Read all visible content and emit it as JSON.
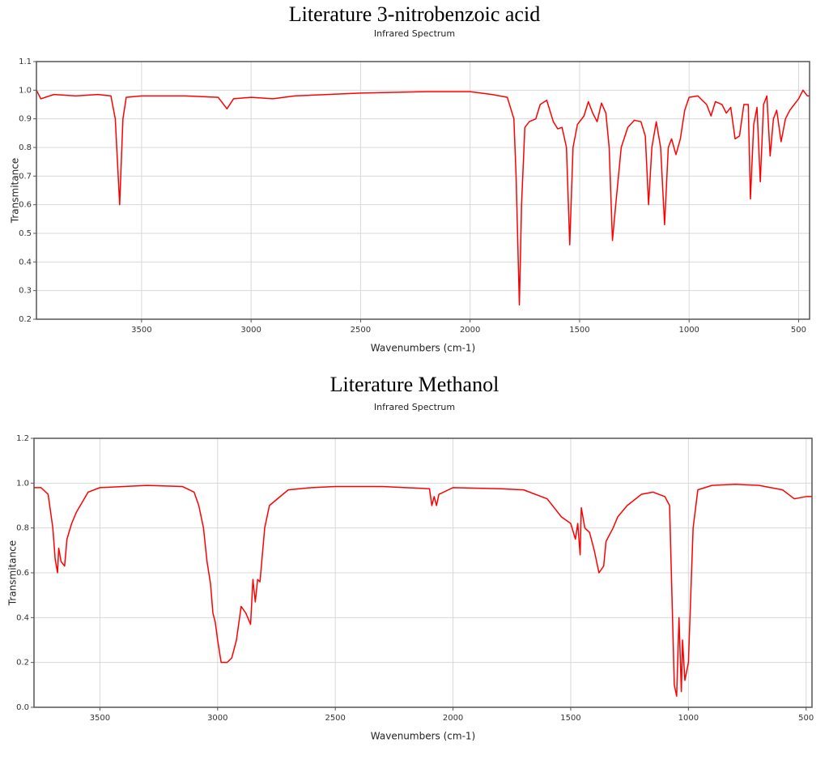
{
  "chart_data": [
    {
      "type": "line",
      "title": "Literature 3-nitrobenzoic acid",
      "subtitle": "Infrared Spectrum",
      "xlabel": "Wavenumbers (cm-1)",
      "ylabel": "Transmitance",
      "color": "#ff0000",
      "grid": true,
      "xlim": [
        3980,
        450
      ],
      "xticks": [
        3500,
        3000,
        2500,
        2000,
        1500,
        1000,
        500
      ],
      "ylim": [
        0.2,
        1.1
      ],
      "yticks": [
        0.2,
        0.3,
        0.4,
        0.5,
        0.6,
        0.7,
        0.8,
        0.9,
        {
          "value": 1,
          "label": "1.0"
        },
        1.1
      ],
      "x": [
        3980,
        3960,
        3900,
        3800,
        3700,
        3640,
        3620,
        3600,
        3585,
        3570,
        3500,
        3300,
        3150,
        3110,
        3080,
        3000,
        2900,
        2800,
        2500,
        2200,
        2000,
        1900,
        1830,
        1800,
        1790,
        1775,
        1765,
        1750,
        1730,
        1700,
        1680,
        1650,
        1620,
        1600,
        1580,
        1560,
        1545,
        1530,
        1510,
        1480,
        1460,
        1440,
        1420,
        1400,
        1380,
        1365,
        1350,
        1335,
        1310,
        1280,
        1250,
        1220,
        1200,
        1185,
        1170,
        1150,
        1130,
        1112,
        1095,
        1080,
        1060,
        1040,
        1020,
        1000,
        960,
        920,
        900,
        880,
        850,
        830,
        810,
        790,
        770,
        750,
        730,
        720,
        705,
        690,
        675,
        660,
        645,
        630,
        615,
        600,
        580,
        560,
        540,
        520,
        500,
        480,
        460,
        450
      ],
      "values": [
        1.0,
        0.97,
        0.985,
        0.98,
        0.985,
        0.98,
        0.9,
        0.6,
        0.9,
        0.975,
        0.98,
        0.98,
        0.975,
        0.935,
        0.97,
        0.975,
        0.97,
        0.98,
        0.99,
        0.995,
        0.995,
        0.985,
        0.975,
        0.9,
        0.7,
        0.25,
        0.6,
        0.87,
        0.89,
        0.9,
        0.95,
        0.965,
        0.89,
        0.865,
        0.87,
        0.8,
        0.46,
        0.8,
        0.88,
        0.91,
        0.96,
        0.92,
        0.89,
        0.955,
        0.92,
        0.8,
        0.475,
        0.6,
        0.8,
        0.87,
        0.895,
        0.89,
        0.84,
        0.6,
        0.8,
        0.89,
        0.8,
        0.53,
        0.8,
        0.83,
        0.775,
        0.83,
        0.93,
        0.975,
        0.98,
        0.95,
        0.91,
        0.96,
        0.95,
        0.92,
        0.94,
        0.83,
        0.84,
        0.95,
        0.95,
        0.62,
        0.88,
        0.94,
        0.68,
        0.95,
        0.98,
        0.77,
        0.9,
        0.93,
        0.82,
        0.9,
        0.93,
        0.95,
        0.97,
        1.0,
        0.98,
        0.98
      ]
    },
    {
      "type": "line",
      "title": "Literature Methanol",
      "subtitle": "Infrared Spectrum",
      "xlabel": "Wavenumbers (cm-1)",
      "ylabel": "Transmitance",
      "color": "#ff0000",
      "grid": true,
      "xlim": [
        3780,
        475
      ],
      "xticks": [
        3500,
        3000,
        2500,
        2000,
        1500,
        1000,
        500
      ],
      "ylim": [
        0,
        1.2
      ],
      "yticks": [
        {
          "value": 0,
          "label": "0.0"
        },
        0.2,
        0.4,
        0.6,
        0.8,
        {
          "value": 1,
          "label": "1.0"
        },
        1.2
      ],
      "x": [
        3780,
        3750,
        3720,
        3700,
        3690,
        3680,
        3675,
        3665,
        3650,
        3640,
        3620,
        3600,
        3550,
        3500,
        3300,
        3150,
        3100,
        3080,
        3060,
        3045,
        3030,
        3020,
        3010,
        3000,
        2985,
        2960,
        2940,
        2920,
        2900,
        2880,
        2860,
        2850,
        2840,
        2830,
        2820,
        2800,
        2780,
        2700,
        2600,
        2500,
        2300,
        2100,
        2090,
        2080,
        2070,
        2060,
        2000,
        1800,
        1700,
        1600,
        1540,
        1500,
        1480,
        1470,
        1460,
        1455,
        1440,
        1420,
        1400,
        1380,
        1360,
        1350,
        1320,
        1300,
        1260,
        1200,
        1150,
        1100,
        1080,
        1070,
        1060,
        1050,
        1040,
        1030,
        1025,
        1015,
        1000,
        990,
        980,
        960,
        900,
        800,
        700,
        600,
        550,
        500,
        475
      ],
      "values": [
        0.98,
        0.98,
        0.95,
        0.8,
        0.66,
        0.6,
        0.71,
        0.65,
        0.63,
        0.75,
        0.82,
        0.87,
        0.96,
        0.98,
        0.99,
        0.985,
        0.96,
        0.9,
        0.8,
        0.65,
        0.55,
        0.42,
        0.38,
        0.3,
        0.2,
        0.2,
        0.22,
        0.3,
        0.45,
        0.42,
        0.37,
        0.57,
        0.47,
        0.57,
        0.56,
        0.8,
        0.9,
        0.97,
        0.98,
        0.985,
        0.985,
        0.975,
        0.9,
        0.94,
        0.9,
        0.95,
        0.98,
        0.975,
        0.97,
        0.93,
        0.85,
        0.82,
        0.75,
        0.82,
        0.68,
        0.89,
        0.8,
        0.78,
        0.7,
        0.6,
        0.63,
        0.74,
        0.8,
        0.85,
        0.9,
        0.95,
        0.96,
        0.94,
        0.9,
        0.5,
        0.1,
        0.05,
        0.4,
        0.07,
        0.3,
        0.12,
        0.2,
        0.5,
        0.8,
        0.97,
        0.99,
        0.995,
        0.99,
        0.97,
        0.93,
        0.94,
        0.94
      ]
    }
  ]
}
